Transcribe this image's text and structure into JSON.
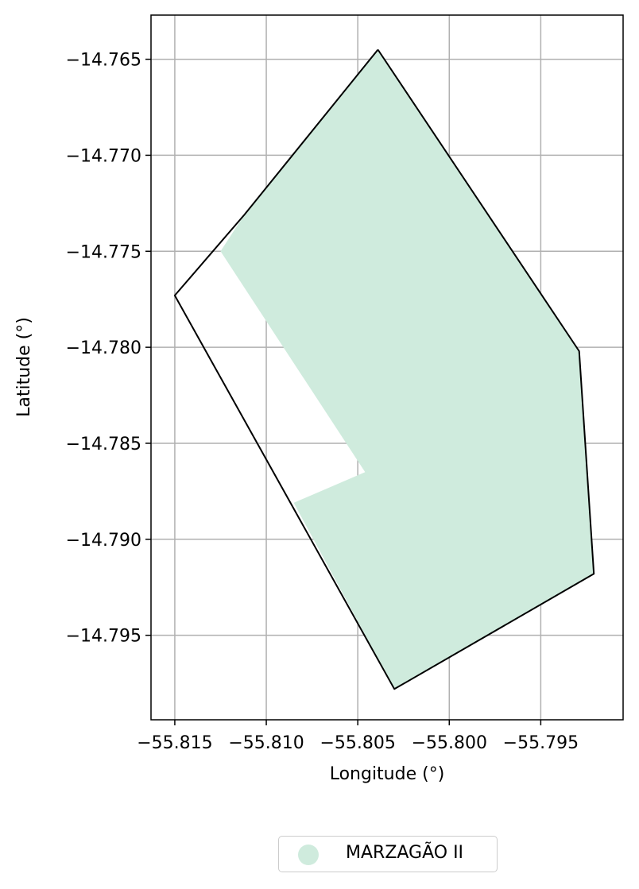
{
  "chart_data": {
    "type": "map",
    "xlabel": "Longitude (°)",
    "ylabel": "Latitude (°)",
    "xlim": [
      -55.8163,
      -55.7905
    ],
    "ylim": [
      -14.7994,
      -14.7627
    ],
    "xticks": [
      -55.815,
      -55.81,
      -55.805,
      -55.8,
      -55.795
    ],
    "xtick_labels": [
      "−55.815",
      "−55.810",
      "−55.805",
      "−55.800",
      "−55.795"
    ],
    "yticks": [
      -14.765,
      -14.77,
      -14.775,
      -14.78,
      -14.785,
      -14.79,
      -14.795
    ],
    "ytick_labels": [
      "−14.765",
      "−14.770",
      "−14.775",
      "−14.780",
      "−14.785",
      "−14.790",
      "−14.795"
    ],
    "grid": true,
    "outline": {
      "color": "#000000",
      "points": [
        [
          -55.8039,
          -14.7645
        ],
        [
          -55.7929,
          -14.7802
        ],
        [
          -55.7921,
          -14.7918
        ],
        [
          -55.803,
          -14.7978
        ],
        [
          -55.815,
          -14.7773
        ],
        [
          -55.8112,
          -14.7731
        ],
        [
          -55.8039,
          -14.7645
        ]
      ]
    },
    "filled_area": {
      "name": "MARZAGÃO II",
      "color": "#cfebdd",
      "points": [
        [
          -55.8039,
          -14.7645
        ],
        [
          -55.7929,
          -14.7802
        ],
        [
          -55.7921,
          -14.7918
        ],
        [
          -55.803,
          -14.7978
        ],
        [
          -55.8085,
          -14.7881
        ],
        [
          -55.8046,
          -14.7865
        ],
        [
          -55.8125,
          -14.775
        ],
        [
          -55.8112,
          -14.7731
        ],
        [
          -55.8039,
          -14.7645
        ]
      ]
    },
    "legend": {
      "position": "bottom-center",
      "entries": [
        {
          "label": "MARZAGÃO II",
          "color": "#cfebdd"
        }
      ]
    }
  }
}
